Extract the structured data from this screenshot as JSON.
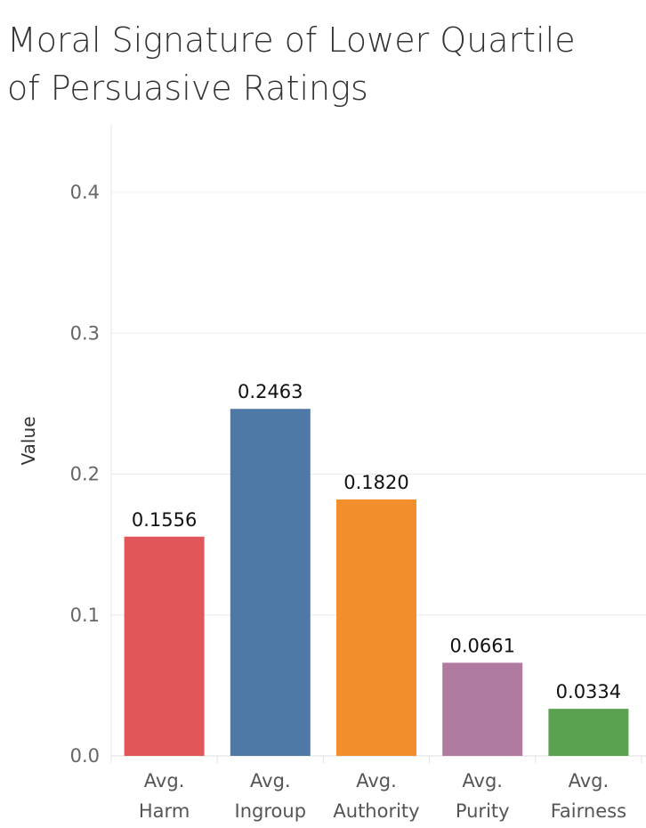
{
  "chart_data": {
    "type": "bar",
    "title": "Moral Signature of Lower Quartile\n of Persuasive Ratings",
    "ylabel": "Value",
    "xlabel": "",
    "categories": [
      "Avg. Harm",
      "Avg. Ingroup",
      "Avg. Authority",
      "Avg. Purity",
      "Avg. Fairness"
    ],
    "category_lines": [
      [
        "Avg.",
        "Harm"
      ],
      [
        "Avg.",
        "Ingroup"
      ],
      [
        "Avg.",
        "Authority"
      ],
      [
        "Avg.",
        "Purity"
      ],
      [
        "Avg.",
        "Fairness"
      ]
    ],
    "values": [
      0.1556,
      0.2463,
      0.182,
      0.0661,
      0.0334
    ],
    "value_labels": [
      "0.1556",
      "0.2463",
      "0.1820",
      "0.0661",
      "0.0334"
    ],
    "colors": [
      "#e15759",
      "#4e79a7",
      "#f28e2b",
      "#b07aa1",
      "#59a14f"
    ],
    "ylim": [
      0,
      0.4
    ],
    "yticks": [
      0.0,
      0.1,
      0.2,
      0.3,
      0.4
    ],
    "ytick_labels": [
      "0.0",
      "0.1",
      "0.2",
      "0.3",
      "0.4"
    ],
    "grid": true,
    "legend": "none"
  }
}
